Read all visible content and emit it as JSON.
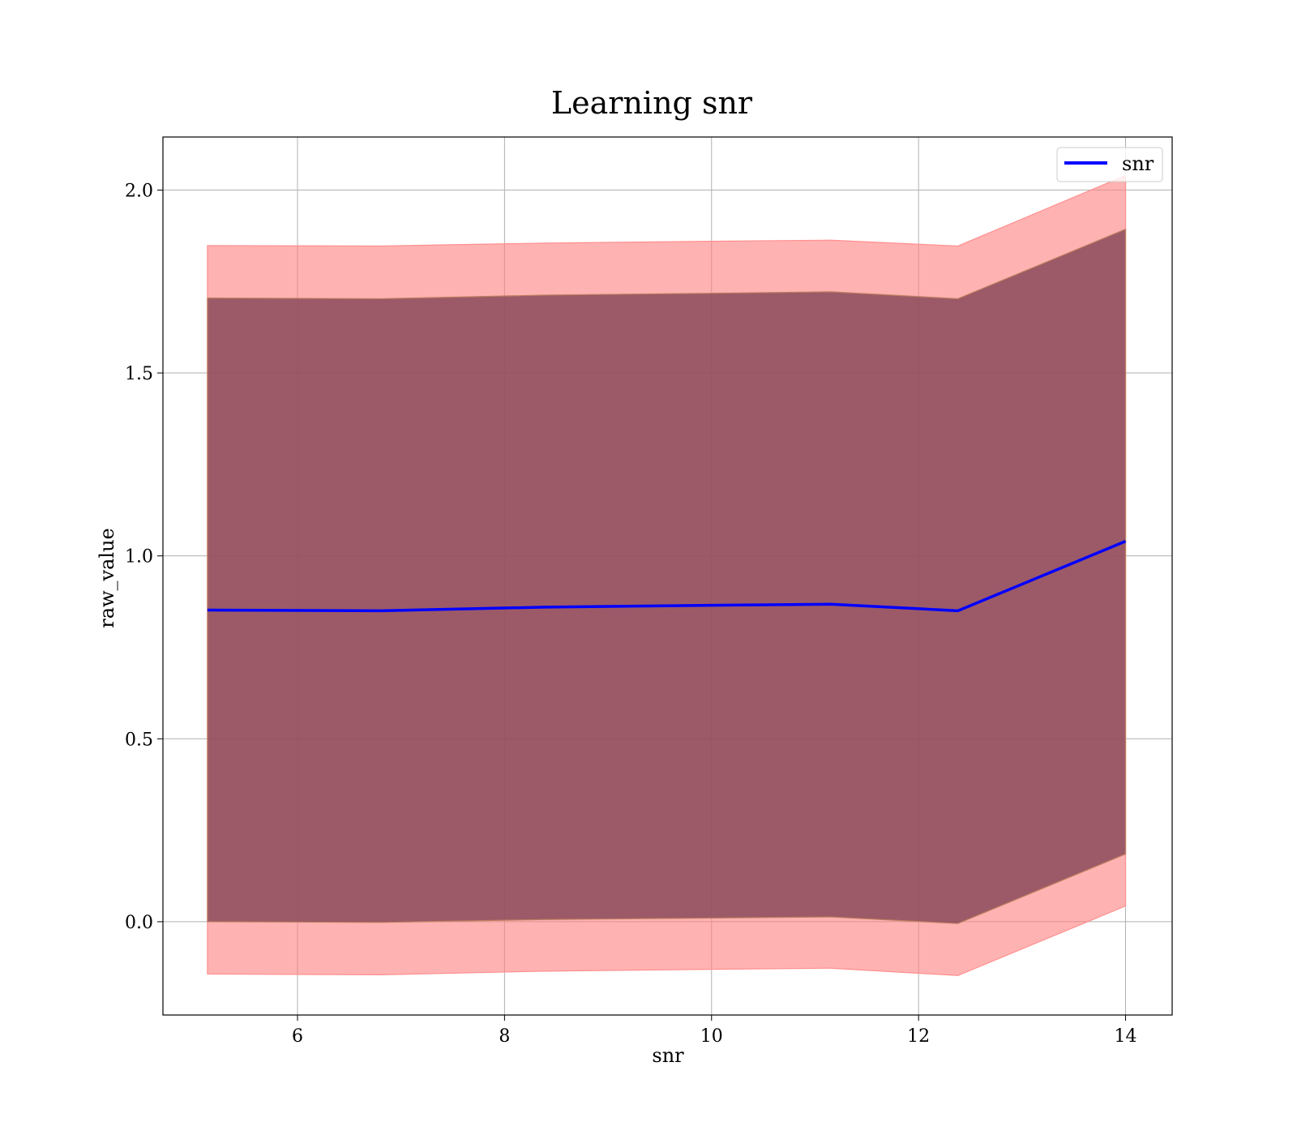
{
  "chart_data": {
    "type": "line",
    "title": "Learning snr",
    "xlabel": "snr",
    "ylabel": "raw_value",
    "xlim": [
      4.7,
      14.45
    ],
    "ylim": [
      -0.255,
      2.145
    ],
    "xticks": [
      6,
      8,
      10,
      12,
      14
    ],
    "xtick_labels": [
      "6",
      "8",
      "10",
      "12",
      "14"
    ],
    "yticks": [
      0.0,
      0.5,
      1.0,
      1.5,
      2.0
    ],
    "ytick_labels": [
      "0.0",
      "0.5",
      "1.0",
      "1.5",
      "2.0"
    ],
    "grid": true,
    "legend": {
      "position": "top-right",
      "entries": [
        "snr"
      ]
    },
    "x": [
      5.13,
      6.8,
      8.4,
      10.0,
      11.15,
      12.38,
      14.0
    ],
    "series": [
      {
        "name": "snr",
        "color": "#0000ff",
        "values": [
          0.852,
          0.85,
          0.86,
          0.865,
          0.868,
          0.85,
          1.04
        ]
      }
    ],
    "bands": [
      {
        "label": "outer band",
        "color": "#ff7f7f",
        "lower": [
          -0.143,
          -0.145,
          -0.135,
          -0.13,
          -0.127,
          -0.147,
          0.043
        ],
        "upper": [
          1.848,
          1.847,
          1.855,
          1.86,
          1.863,
          1.847,
          2.04
        ]
      },
      {
        "label": "inner band",
        "color": "#8b4a5a",
        "lower": [
          0.0,
          -0.002,
          0.006,
          0.01,
          0.013,
          -0.005,
          0.185
        ],
        "upper": [
          1.705,
          1.703,
          1.713,
          1.718,
          1.722,
          1.703,
          1.893
        ]
      }
    ]
  }
}
